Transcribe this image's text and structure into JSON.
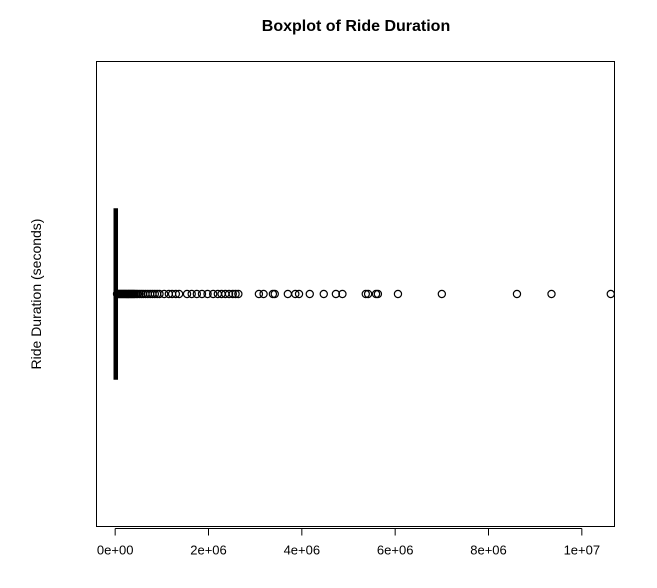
{
  "chart_data": {
    "type": "boxplot",
    "orientation": "horizontal",
    "title": "Boxplot of Ride Duration",
    "ylabel": "Ride Duration (seconds)",
    "xlabel": "",
    "xlim": [
      -400000,
      10700000
    ],
    "x_ticks": [
      0,
      2000000,
      4000000,
      6000000,
      8000000,
      10000000
    ],
    "x_tick_labels": [
      "0e+00",
      "2e+06",
      "4e+06",
      "6e+06",
      "8e+06",
      "1e+07"
    ],
    "grid": false,
    "box": {
      "whisker_low": 0,
      "q1": 2000,
      "median": 5000,
      "q3": 12000,
      "whisker_high": 35000
    },
    "outliers": [
      40000,
      60000,
      80000,
      100000,
      120000,
      140000,
      160000,
      180000,
      200000,
      220000,
      240000,
      260000,
      280000,
      300000,
      320000,
      340000,
      360000,
      380000,
      400000,
      420000,
      450000,
      480000,
      520000,
      560000,
      600000,
      650000,
      700000,
      750000,
      800000,
      850000,
      900000,
      950000,
      1050000,
      1150000,
      1220000,
      1300000,
      1370000,
      1540000,
      1640000,
      1750000,
      1860000,
      1980000,
      2100000,
      2200000,
      2280000,
      2360000,
      2440000,
      2520000,
      2580000,
      2640000,
      3080000,
      3180000,
      3380000,
      3420000,
      3700000,
      3860000,
      3940000,
      4170000,
      4470000,
      4730000,
      4870000,
      5370000,
      5420000,
      5590000,
      5630000,
      6060000,
      7000000,
      8610000,
      9350000,
      10620000
    ]
  }
}
